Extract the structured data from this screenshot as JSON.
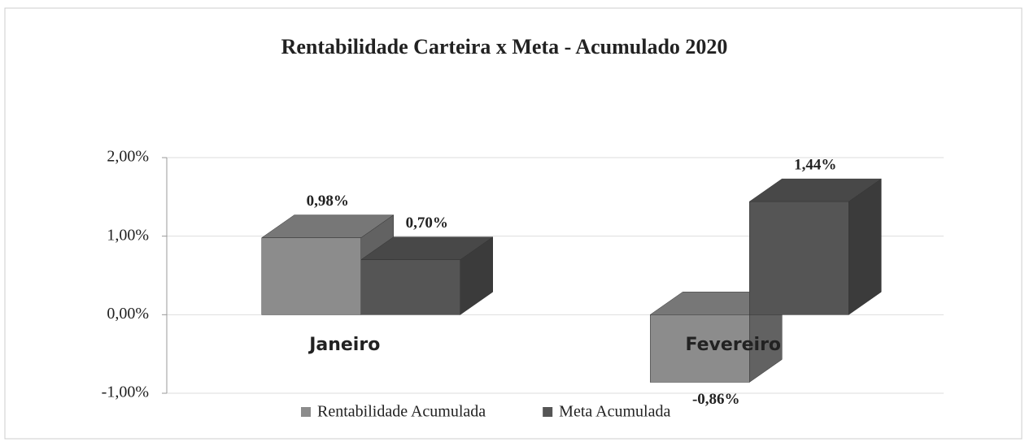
{
  "chart_data": {
    "type": "bar3d",
    "title": "Rentabilidade Carteira x Meta - Acumulado 2020",
    "categories": [
      "Janeiro",
      "Fevereiro"
    ],
    "series": [
      {
        "name": "Rentabilidade Acumulada",
        "color": "#8c8c8c",
        "values": [
          0.98,
          -0.86
        ],
        "value_labels": [
          "0,98%",
          "-0,86%"
        ]
      },
      {
        "name": "Meta Acumulada",
        "color": "#555555",
        "values": [
          0.7,
          1.44
        ],
        "value_labels": [
          "0,70%",
          "1,44%"
        ]
      }
    ],
    "ylim": [
      -1,
      2
    ],
    "yticks": [
      {
        "value": -1,
        "label": "-1,00%"
      },
      {
        "value": 0,
        "label": "0,00%"
      },
      {
        "value": 1,
        "label": "1,00%"
      },
      {
        "value": 2,
        "label": "2,00%"
      }
    ],
    "grid": true,
    "legend": "bottom"
  }
}
